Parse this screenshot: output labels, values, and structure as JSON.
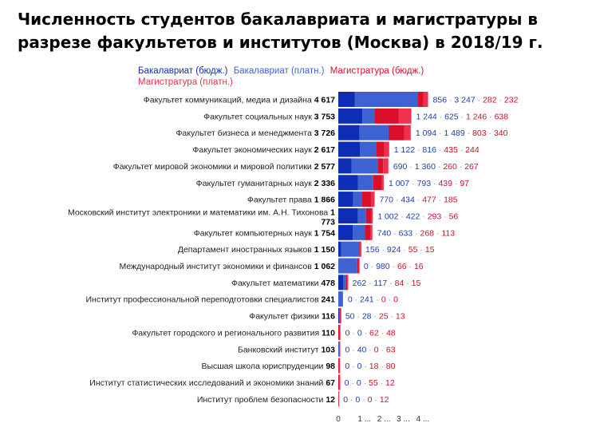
{
  "title": "Численность студентов бакалавриата и магистратуры в разрезе факультетов и институтов (Москва) в 2018/19 г.",
  "colors": {
    "bach_budget": "#0d2db5",
    "bach_paid": "#3d62d2",
    "mag_budget": "#dc0f2b",
    "mag_paid": "#f0304c",
    "label_blue": "#1e3fa8",
    "label_red": "#d01028",
    "sep": "#888888"
  },
  "chart_data": {
    "type": "bar",
    "orientation": "horizontal",
    "stacked": true,
    "title": "Численность студентов бакалавриата и магистратуры в разрезе факультетов и институтов (Москва) в 2018/19 г.",
    "series_names": [
      "Бакалавриат (бюдж.)",
      "Бакалавриат (платн.)",
      "Магистратура (бюдж.)",
      "Магистратура (платн.)"
    ],
    "xlim": [
      0,
      4800
    ],
    "x_tick_labels": [
      "0",
      "1 ...",
      "2 ...",
      "3 ...",
      "4 ..."
    ],
    "rows": [
      {
        "name": "Факультет коммуникаций, медиа и дизайна",
        "total": "4 617",
        "values": [
          856,
          3247,
          282,
          232
        ],
        "value_labels": [
          "856",
          "3 247",
          "282",
          "232"
        ]
      },
      {
        "name": "Факультет социальных наук",
        "total": "3 753",
        "values": [
          1244,
          625,
          1246,
          638
        ],
        "value_labels": [
          "1 244",
          "625",
          "1 246",
          "638"
        ]
      },
      {
        "name": "Факультет бизнеса и менеджмента",
        "total": "3 726",
        "values": [
          1094,
          1489,
          803,
          340
        ],
        "value_labels": [
          "1 094",
          "1 489",
          "803",
          "340"
        ]
      },
      {
        "name": "Факультет экономических наук",
        "total": "2 617",
        "values": [
          1122,
          816,
          435,
          244
        ],
        "value_labels": [
          "1 122",
          "816",
          "435",
          "244"
        ]
      },
      {
        "name": "Факультет мировой экономики и мировой политики",
        "total": "2 577",
        "values": [
          690,
          1360,
          260,
          267
        ],
        "value_labels": [
          "690",
          "1 360",
          "260",
          "267"
        ]
      },
      {
        "name": "Факультет гуманитарных наук",
        "total": "2 336",
        "values": [
          1007,
          793,
          439,
          97
        ],
        "value_labels": [
          "1 007",
          "793",
          "439",
          "97"
        ]
      },
      {
        "name": "Факультет права",
        "total": "1 866",
        "values": [
          770,
          434,
          477,
          185
        ],
        "value_labels": [
          "770",
          "434",
          "477",
          "185"
        ]
      },
      {
        "name": "Московский институт электроники и математики им. А.Н. Тихонова",
        "total": "1 773",
        "total_part1": "1",
        "total_part2": "773",
        "values": [
          1002,
          422,
          293,
          56
        ],
        "value_labels": [
          "1 002",
          "422",
          "293",
          "56"
        ]
      },
      {
        "name": "Факультет компьютерных наук",
        "total": "1 754",
        "values": [
          740,
          633,
          268,
          113
        ],
        "value_labels": [
          "740",
          "633",
          "268",
          "113"
        ]
      },
      {
        "name": "Департамент иностранных языков",
        "total": "1 150",
        "values": [
          156,
          924,
          55,
          15
        ],
        "value_labels": [
          "156",
          "924",
          "55",
          "15"
        ]
      },
      {
        "name": "Международный институт экономики и финансов",
        "total": "1 062",
        "values": [
          0,
          980,
          66,
          16
        ],
        "value_labels": [
          "0",
          "980",
          "66",
          "16"
        ]
      },
      {
        "name": "Факультет математики",
        "total": "478",
        "values": [
          262,
          117,
          84,
          15
        ],
        "value_labels": [
          "262",
          "117",
          "84",
          "15"
        ]
      },
      {
        "name": "Институт профессиональной переподготовки специалистов",
        "total": "241",
        "values": [
          0,
          241,
          0,
          0
        ],
        "value_labels": [
          "0",
          "241",
          "0",
          "0"
        ]
      },
      {
        "name": "Факультет физики",
        "total": "116",
        "values": [
          50,
          28,
          25,
          13
        ],
        "value_labels": [
          "50",
          "28",
          "25",
          "13"
        ]
      },
      {
        "name": "Факультет городского и регионального развития",
        "total": "110",
        "values": [
          0,
          0,
          62,
          48
        ],
        "value_labels": [
          "0",
          "0",
          "62",
          "48"
        ]
      },
      {
        "name": "Банковский институт",
        "total": "103",
        "values": [
          0,
          40,
          0,
          63
        ],
        "value_labels": [
          "0",
          "40",
          "0",
          "63"
        ]
      },
      {
        "name": "Высшая школа юриспруденции",
        "total": "98",
        "values": [
          0,
          0,
          18,
          80
        ],
        "value_labels": [
          "0",
          "0",
          "18",
          "80"
        ]
      },
      {
        "name": "Институт статистических исследований и экономики знаний",
        "total": "67",
        "values": [
          0,
          0,
          55,
          12
        ],
        "value_labels": [
          "0",
          "0",
          "55",
          "12"
        ]
      },
      {
        "name": "Институт проблем безопасности",
        "total": "12",
        "values": [
          0,
          0,
          0,
          12
        ],
        "value_labels": [
          "0",
          "0",
          "0",
          "12"
        ]
      }
    ]
  }
}
